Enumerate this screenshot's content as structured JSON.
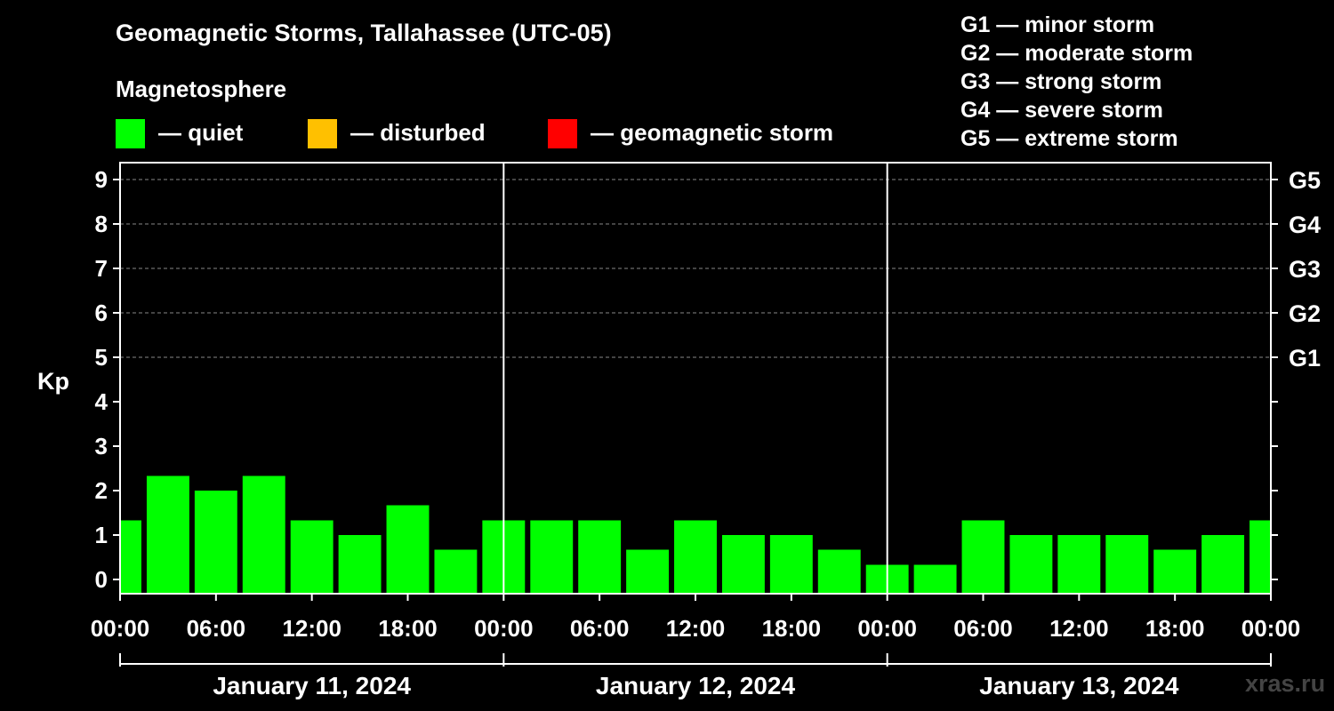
{
  "header": {
    "title": "Geomagnetic Storms, Tallahassee (UTC-05)",
    "subtitle": "Magnetosphere",
    "legend": [
      {
        "label": "— quiet",
        "color": "#00ff00"
      },
      {
        "label": "— disturbed",
        "color": "#ffc000"
      },
      {
        "label": "— geomagnetic storm",
        "color": "#ff0000"
      }
    ],
    "storm_scale": [
      "G1 — minor storm",
      "G2 — moderate storm",
      "G3 — strong storm",
      "G4 — severe storm",
      "G5 — extreme storm"
    ],
    "watermark": "xras.ru"
  },
  "chart_data": {
    "type": "bar",
    "ylabel": "Kp",
    "ylim": [
      0,
      9
    ],
    "yticks": [
      "0",
      "1",
      "2",
      "3",
      "4",
      "5",
      "6",
      "7",
      "8",
      "9"
    ],
    "right_ticks": [
      {
        "value": 5,
        "label": "G1"
      },
      {
        "value": 6,
        "label": "G2"
      },
      {
        "value": 7,
        "label": "G3"
      },
      {
        "value": 8,
        "label": "G4"
      },
      {
        "value": 9,
        "label": "G5"
      }
    ],
    "xticks": [
      "00:00",
      "06:00",
      "12:00",
      "18:00",
      "00:00",
      "06:00",
      "12:00",
      "18:00",
      "00:00",
      "06:00",
      "12:00",
      "18:00",
      "00:00"
    ],
    "days": [
      "January 11, 2024",
      "January 12, 2024",
      "January 13, 2024"
    ],
    "x_hours_range": [
      0,
      72
    ],
    "bar_hours": [
      0,
      3,
      6,
      9,
      12,
      15,
      18,
      21,
      24,
      27,
      30,
      33,
      36,
      39,
      42,
      45,
      48,
      51,
      54,
      57,
      60,
      63,
      66,
      69,
      72
    ],
    "values": [
      1.33,
      2.33,
      2.0,
      2.33,
      1.33,
      1.0,
      1.67,
      0.67,
      1.33,
      1.33,
      1.33,
      0.67,
      1.33,
      1.0,
      1.0,
      0.67,
      0.33,
      0.33,
      1.33,
      1.0,
      1.0,
      1.0,
      0.67,
      1.0,
      1.33
    ],
    "bar_color": "#00ff00",
    "grid": true
  }
}
